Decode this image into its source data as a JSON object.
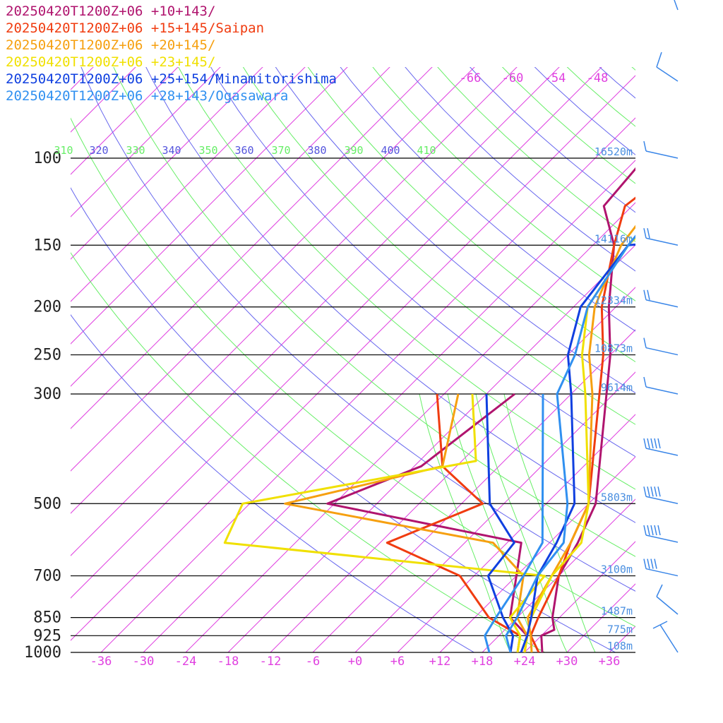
{
  "chart_data": {
    "type": "line",
    "title": "",
    "xlabel": "",
    "ylabel": "",
    "x_axis": {
      "ticks": [
        "-36",
        "-30",
        "-24",
        "-18",
        "-12",
        "-6",
        "+0",
        "+6",
        "+12",
        "+18",
        "+24",
        "+30",
        "+36"
      ],
      "range": [
        -42,
        38
      ]
    },
    "y_axis": {
      "scale": "log",
      "range_hpa": [
        1000,
        100
      ],
      "ticks": [
        "100",
        "150",
        "200",
        "250",
        "300",
        "500",
        "700",
        "850",
        "925",
        "1000"
      ]
    },
    "height_labels": [
      {
        "p": 100,
        "label": "16520m"
      },
      {
        "p": 150,
        "label": "14116m"
      },
      {
        "p": 200,
        "label": "12334m"
      },
      {
        "p": 250,
        "label": "10873m"
      },
      {
        "p": 300,
        "label": "9614m"
      },
      {
        "p": 500,
        "label": "5803m"
      },
      {
        "p": 700,
        "label": "3100m"
      },
      {
        "p": 850,
        "label": "1487m"
      },
      {
        "p": 925,
        "label": "775m"
      },
      {
        "p": 1000,
        "label": "108m"
      }
    ],
    "isotherm_top_labels": [
      "-66",
      "-60",
      "-54",
      "-48"
    ],
    "theta_labels": [
      "310",
      "320",
      "330",
      "340",
      "350",
      "360",
      "370",
      "380",
      "390",
      "400",
      "410"
    ],
    "series": [
      {
        "name": "20250420T1200Z+06 +10+143/",
        "color": "#b0146e",
        "temperature": [
          [
            1000,
            26.5
          ],
          [
            925,
            24
          ],
          [
            900,
            25
          ],
          [
            850,
            23
          ],
          [
            700,
            18
          ],
          [
            600,
            16
          ],
          [
            500,
            13
          ],
          [
            300,
            -1
          ],
          [
            250,
            -6
          ],
          [
            200,
            -13
          ],
          [
            150,
            -21
          ],
          [
            125,
            -28
          ],
          [
            100,
            -29
          ],
          [
            70,
            -22
          ]
        ],
        "dewpoint": [
          [
            1000,
            24
          ],
          [
            925,
            22
          ],
          [
            850,
            17
          ],
          [
            700,
            12
          ],
          [
            600,
            8
          ],
          [
            500,
            -25
          ],
          [
            420,
            -17
          ],
          [
            300,
            -14
          ]
        ]
      },
      {
        "name": "20250420T1200Z+06 +15+145/Saipan",
        "color": "#f03c10",
        "temperature": [
          [
            1000,
            26
          ],
          [
            925,
            22.5
          ],
          [
            850,
            21
          ],
          [
            700,
            18
          ],
          [
            600,
            15
          ],
          [
            500,
            12
          ],
          [
            300,
            -2
          ],
          [
            250,
            -7
          ],
          [
            200,
            -14
          ],
          [
            150,
            -21
          ],
          [
            125,
            -25
          ],
          [
            100,
            -23
          ],
          [
            70,
            -16
          ]
        ],
        "dewpoint": [
          [
            1000,
            23
          ],
          [
            925,
            21
          ],
          [
            850,
            14
          ],
          [
            700,
            4
          ],
          [
            600,
            -11
          ],
          [
            500,
            -3
          ],
          [
            420,
            -14
          ],
          [
            300,
            -25
          ]
        ]
      },
      {
        "name": "20250420T1200Z+06 +20+145/",
        "color": "#f6a010",
        "temperature": [
          [
            1000,
            25
          ],
          [
            925,
            22.5
          ],
          [
            850,
            19.5
          ],
          [
            700,
            17
          ],
          [
            600,
            15
          ],
          [
            500,
            12
          ],
          [
            300,
            -3
          ],
          [
            250,
            -9
          ],
          [
            200,
            -15
          ],
          [
            150,
            -20
          ],
          [
            130,
            -21
          ],
          [
            100,
            -19
          ],
          [
            70,
            -12
          ]
        ],
        "dewpoint": [
          [
            1000,
            24
          ],
          [
            925,
            22
          ],
          [
            850,
            18
          ],
          [
            700,
            13
          ],
          [
            600,
            4
          ],
          [
            500,
            -31
          ],
          [
            420,
            -14
          ],
          [
            300,
            -22
          ]
        ]
      },
      {
        "name": "20250420T1200Z+06 +23+145/",
        "color": "#f0e000",
        "temperature": [
          [
            1000,
            24
          ],
          [
            925,
            22
          ],
          [
            850,
            20
          ],
          [
            700,
            17
          ],
          [
            600,
            16.5
          ],
          [
            500,
            12
          ],
          [
            300,
            -4
          ],
          [
            250,
            -10
          ],
          [
            200,
            -16
          ],
          [
            150,
            -19
          ],
          [
            100,
            -19
          ],
          [
            70,
            -11
          ]
        ],
        "dewpoint": [
          [
            1000,
            23
          ],
          [
            925,
            21
          ],
          [
            850,
            17
          ],
          [
            700,
            16
          ],
          [
            600,
            -34
          ],
          [
            500,
            -37
          ],
          [
            410,
            -10
          ],
          [
            300,
            -20
          ]
        ]
      },
      {
        "name": "20250420T1200Z+06 +25+154/Minamitorishima",
        "color": "#1040e0",
        "temperature": [
          [
            1000,
            23.5
          ],
          [
            925,
            22
          ],
          [
            850,
            20
          ],
          [
            700,
            15
          ],
          [
            600,
            13
          ],
          [
            500,
            10
          ],
          [
            300,
            -6
          ],
          [
            250,
            -12
          ],
          [
            200,
            -17
          ],
          [
            150,
            -19
          ],
          [
            148,
            -15
          ],
          [
            100,
            -18
          ],
          [
            70,
            -12
          ]
        ],
        "dewpoint": [
          [
            1000,
            22
          ],
          [
            925,
            20
          ],
          [
            850,
            16
          ],
          [
            700,
            8
          ],
          [
            600,
            7
          ],
          [
            500,
            -2
          ],
          [
            400,
            -9
          ],
          [
            300,
            -18
          ]
        ]
      },
      {
        "name": "20250420T1200Z+06 +28+143/Ogasawara",
        "color": "#3090f0",
        "temperature": [
          [
            1000,
            22
          ],
          [
            925,
            19
          ],
          [
            850,
            18
          ],
          [
            700,
            15
          ],
          [
            600,
            14
          ],
          [
            500,
            9
          ],
          [
            300,
            -8
          ],
          [
            250,
            -11
          ],
          [
            200,
            -16
          ],
          [
            150,
            -19
          ],
          [
            125,
            -20
          ],
          [
            100,
            -18
          ],
          [
            70,
            -10
          ]
        ],
        "dewpoint": [
          [
            1000,
            19
          ],
          [
            925,
            16
          ],
          [
            850,
            15
          ],
          [
            700,
            13
          ],
          [
            600,
            11
          ],
          [
            300,
            -10
          ]
        ]
      }
    ],
    "wind_levels_hpa": [
      100,
      150,
      200,
      250,
      300,
      400,
      500,
      600,
      700,
      850,
      925
    ]
  }
}
